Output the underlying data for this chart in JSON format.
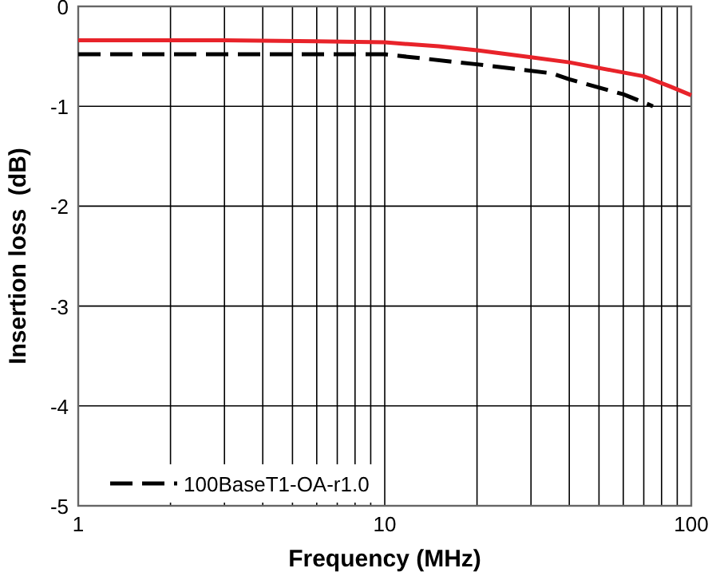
{
  "chart_data": {
    "type": "line",
    "xlabel": "Frequency (MHz)",
    "ylabel": "Insertion loss  (dB)",
    "log": "x",
    "grid": true,
    "legend": "bottom left",
    "line_style": "solid",
    "xlim": [
      1,
      100
    ],
    "ylim": [
      -5,
      0
    ],
    "xticks": [
      1,
      {
        "value": 2,
        "label": null
      },
      {
        "value": 3,
        "label": null
      },
      {
        "value": 4,
        "label": null
      },
      {
        "value": 5,
        "label": null
      },
      {
        "value": 6,
        "label": null
      },
      {
        "value": 7,
        "label": null
      },
      {
        "value": 8,
        "label": null
      },
      {
        "value": 9,
        "label": null
      },
      10,
      {
        "value": 20,
        "label": null
      },
      {
        "value": 30,
        "label": null
      },
      {
        "value": 40,
        "label": null
      },
      {
        "value": 50,
        "label": null
      },
      {
        "value": 60,
        "label": null
      },
      {
        "value": 70,
        "label": null
      },
      {
        "value": 80,
        "label": null
      },
      {
        "value": 90,
        "label": null
      },
      100
    ],
    "yticks": [
      -5,
      -4,
      -3,
      -2,
      -1,
      0
    ],
    "series": [
      {
        "color": "#e8232a",
        "x": [
          1,
          3,
          6,
          10,
          15,
          20,
          30,
          40,
          55,
          70,
          85,
          100
        ],
        "values": [
          -0.34,
          -0.34,
          -0.35,
          -0.36,
          -0.4,
          -0.44,
          -0.51,
          -0.56,
          -0.64,
          -0.7,
          -0.8,
          -0.89
        ]
      },
      {
        "name": "100BaseT1-OA-r1.0",
        "color": "#000000",
        "line_style": "dashed",
        "x": [
          1,
          10,
          20,
          35,
          40,
          60,
          75
        ],
        "values": [
          -0.48,
          -0.48,
          -0.58,
          -0.67,
          -0.73,
          -0.88,
          -1.0
        ]
      }
    ]
  }
}
